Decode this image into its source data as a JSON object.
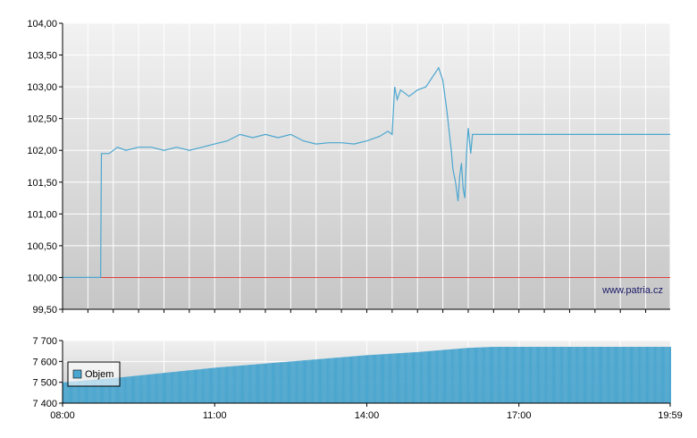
{
  "watermark": "www.patria.cz",
  "legend": {
    "label": "Objem",
    "color": "#4ba6cf"
  },
  "colors": {
    "price": "#4ba6cf",
    "reference": "#e04040",
    "volume": "#4ba6cf",
    "axis": "#000000",
    "grid": "#ffffff"
  },
  "chart_data": [
    {
      "type": "line",
      "title": "",
      "xlabel": "",
      "ylabel": "",
      "x_range": [
        "08:00",
        "19:59"
      ],
      "ylim": [
        99.5,
        104.0
      ],
      "y_ticks": [
        "99,50",
        "100,00",
        "100,50",
        "101,00",
        "101,50",
        "102,00",
        "102,50",
        "103,00",
        "103,50",
        "104,00"
      ],
      "grid": true,
      "reference_line": {
        "value": 100.0,
        "color": "#e04040"
      },
      "series": [
        {
          "x": [
            "08:00",
            "08:45",
            "08:46",
            "08:55",
            "09:05",
            "09:15",
            "09:30",
            "09:45",
            "10:00",
            "10:15",
            "10:30",
            "10:45",
            "11:00",
            "11:15",
            "11:30",
            "11:45",
            "12:00",
            "12:15",
            "12:30",
            "12:45",
            "13:00",
            "13:15",
            "13:30",
            "13:45",
            "14:00",
            "14:15",
            "14:25",
            "14:30",
            "14:33",
            "14:36",
            "14:40",
            "14:50",
            "15:00",
            "15:10",
            "15:20",
            "15:25",
            "15:30",
            "15:35",
            "15:40",
            "15:42",
            "15:45",
            "15:48",
            "15:50",
            "15:52",
            "15:54",
            "15:56",
            "15:58",
            "16:00",
            "16:03",
            "16:05",
            "16:07",
            "16:10",
            "16:15",
            "19:59"
          ],
          "y": [
            100.0,
            100.0,
            101.95,
            101.95,
            102.05,
            102.0,
            102.05,
            102.05,
            102.0,
            102.05,
            102.0,
            102.05,
            102.1,
            102.15,
            102.25,
            102.2,
            102.25,
            102.2,
            102.25,
            102.15,
            102.1,
            102.12,
            102.12,
            102.1,
            102.15,
            102.22,
            102.3,
            102.25,
            103.0,
            102.8,
            102.95,
            102.85,
            102.95,
            103.0,
            103.2,
            103.3,
            103.1,
            102.6,
            102.0,
            101.7,
            101.5,
            101.2,
            101.6,
            101.8,
            101.4,
            101.25,
            101.95,
            102.35,
            101.95,
            102.25,
            102.25,
            102.25,
            102.25,
            102.25
          ]
        }
      ]
    },
    {
      "type": "bar",
      "title": "",
      "xlabel": "",
      "ylabel": "",
      "x_ticks": [
        "08:00",
        "11:00",
        "14:00",
        "17:00",
        "19:59"
      ],
      "ylim": [
        7400,
        7700
      ],
      "y_ticks": [
        "7 400",
        "7 500",
        "7 600",
        "7 700"
      ],
      "series": [
        {
          "name": "Objem",
          "x": [
            "08:00",
            "09:00",
            "10:00",
            "11:00",
            "12:00",
            "13:00",
            "14:00",
            "15:00",
            "16:00",
            "16:30",
            "17:00",
            "18:00",
            "19:00",
            "19:59"
          ],
          "y": [
            7500,
            7520,
            7545,
            7570,
            7590,
            7610,
            7630,
            7645,
            7665,
            7670,
            7670,
            7670,
            7670,
            7670
          ]
        }
      ]
    }
  ]
}
